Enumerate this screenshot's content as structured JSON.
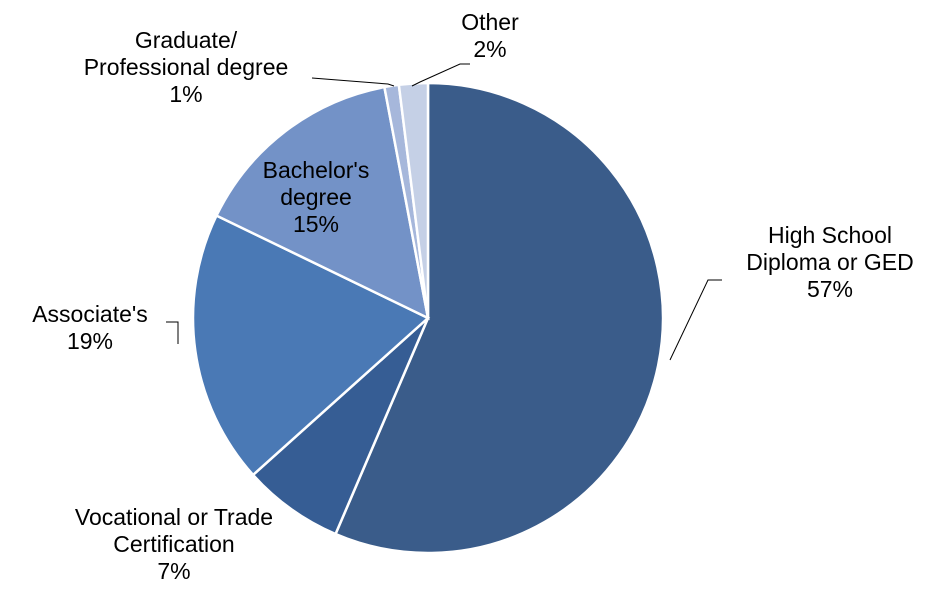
{
  "chart_data": {
    "type": "pie",
    "title": "",
    "slices": [
      {
        "label_lines": [
          "High School",
          "Diploma or GED"
        ],
        "value": 57,
        "value_label": "57%",
        "color": "#3a5c8a"
      },
      {
        "label_lines": [
          "Vocational or Trade",
          "Certification"
        ],
        "value": 7,
        "value_label": "7%",
        "color": "#365d94"
      },
      {
        "label_lines": [
          "Associate's"
        ],
        "value": 19,
        "value_label": "19%",
        "color": "#4a79b5"
      },
      {
        "label_lines": [
          "Bachelor's",
          "degree"
        ],
        "value": 15,
        "value_label": "15%",
        "color": "#7392c7"
      },
      {
        "label_lines": [
          "Graduate/",
          "Professional degree"
        ],
        "value": 1,
        "value_label": "1%",
        "color": "#a6b7db"
      },
      {
        "label_lines": [
          "Other"
        ],
        "value": 2,
        "value_label": "2%",
        "color": "#c5d0e6"
      }
    ],
    "start_angle_deg": 0,
    "direction": "clockwise",
    "legend": "none"
  }
}
